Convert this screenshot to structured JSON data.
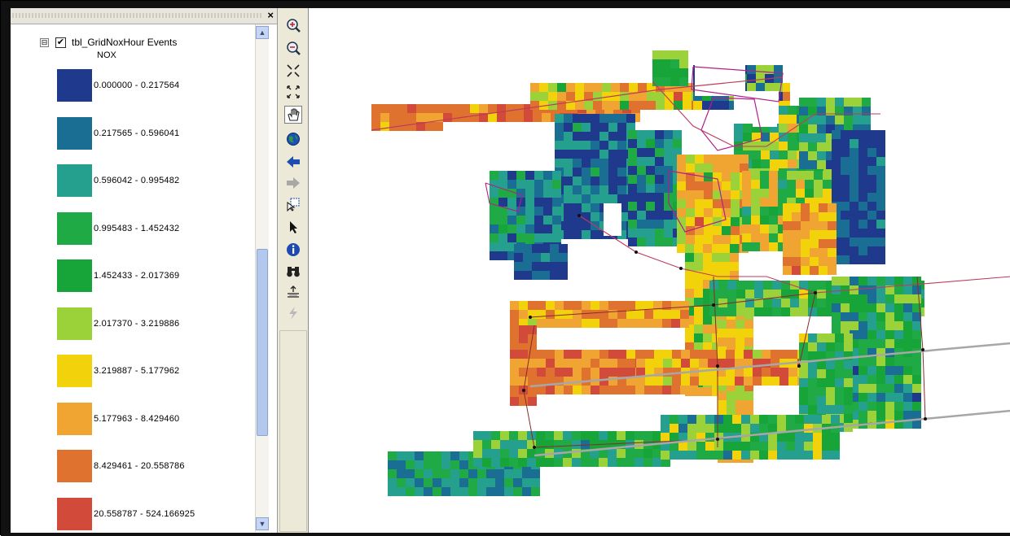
{
  "toc": {
    "close_glyph": "×",
    "layer": {
      "expander": "⊟",
      "checked": "✔",
      "name": "tbl_GridNoxHour Events",
      "field": "NOX"
    },
    "legend": [
      {
        "label": "0.000000 - 0.217564",
        "color": "#1f3a8c"
      },
      {
        "label": "0.217565 - 0.596041",
        "color": "#1a6e94"
      },
      {
        "label": "0.596042 - 0.995482",
        "color": "#25a08e"
      },
      {
        "label": "0.995483 - 1.452432",
        "color": "#1faa45"
      },
      {
        "label": "1.452433 - 2.017369",
        "color": "#17a53a"
      },
      {
        "label": "2.017370 - 3.219886",
        "color": "#9bd23a"
      },
      {
        "label": "3.219887 - 5.177962",
        "color": "#f2d20a"
      },
      {
        "label": "5.177963 - 8.429460",
        "color": "#f0a431"
      },
      {
        "label": "8.429461 - 20.558786",
        "color": "#e07230"
      },
      {
        "label": "20.558787 - 524.166925",
        "color": "#d24a3a"
      }
    ],
    "scrollbar": {
      "up": "▲",
      "down": "▼"
    }
  },
  "toolbar": {
    "tools": [
      {
        "name": "zoom-in-icon",
        "label": "Zoom In"
      },
      {
        "name": "zoom-out-icon",
        "label": "Zoom Out"
      },
      {
        "name": "fixed-zoom-in-icon",
        "label": "Fixed Zoom In"
      },
      {
        "name": "fixed-zoom-out-icon",
        "label": "Fixed Zoom Out"
      },
      {
        "name": "pan-hand-icon",
        "label": "Pan"
      },
      {
        "name": "full-extent-globe-icon",
        "label": "Full Extent"
      },
      {
        "name": "back-arrow-icon",
        "label": "Go Back"
      },
      {
        "name": "forward-arrow-icon",
        "label": "Go Forward"
      },
      {
        "name": "select-features-icon",
        "label": "Select Features"
      },
      {
        "name": "select-elements-pointer-icon",
        "label": "Select Elements"
      },
      {
        "name": "identify-info-icon",
        "label": "Identify"
      },
      {
        "name": "find-binoculars-icon",
        "label": "Find"
      },
      {
        "name": "measure-icon",
        "label": "Measure"
      },
      {
        "name": "hyperlink-lightning-icon",
        "label": "Hyperlink"
      }
    ]
  },
  "map": {
    "colors": {
      "c0": "#1f3a8c",
      "c1": "#1a6e94",
      "c2": "#25a08e",
      "c3": "#1faa45",
      "c4": "#17a53a",
      "c5": "#9bd23a",
      "c6": "#f2d20a",
      "c7": "#f0a431",
      "c8": "#e07230",
      "c9": "#d24a3a"
    }
  }
}
